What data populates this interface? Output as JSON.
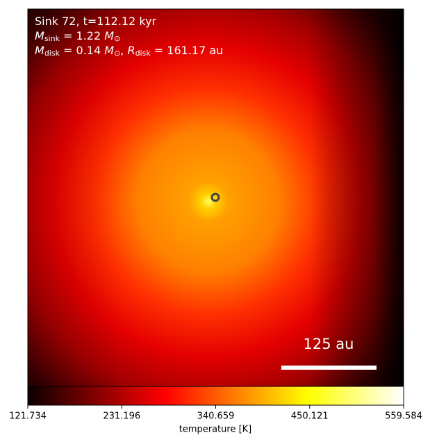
{
  "chart_data": {
    "type": "image",
    "info_lines": [
      [
        "Sink 72, t=112.12 kyr"
      ],
      [
        {
          "i": "M"
        },
        {
          "sub": "sink"
        },
        " = 1.22 ",
        {
          "i": "M"
        },
        {
          "sub": "⊙"
        }
      ],
      [
        {
          "i": "M"
        },
        {
          "sub": "disk"
        },
        " = 0.14 ",
        {
          "i": "M"
        },
        {
          "sub": "⊙"
        },
        ", ",
        {
          "i": "R"
        },
        {
          "sub": "disk"
        },
        " = 161.17 au"
      ]
    ],
    "scalebar": {
      "label": "125 au"
    },
    "colorbar": {
      "label": "temperature [K]",
      "colormap": "hot",
      "clim": [
        121.734,
        559.584
      ],
      "ticks": [
        121.734,
        231.196,
        340.659,
        450.121,
        559.584
      ]
    }
  }
}
